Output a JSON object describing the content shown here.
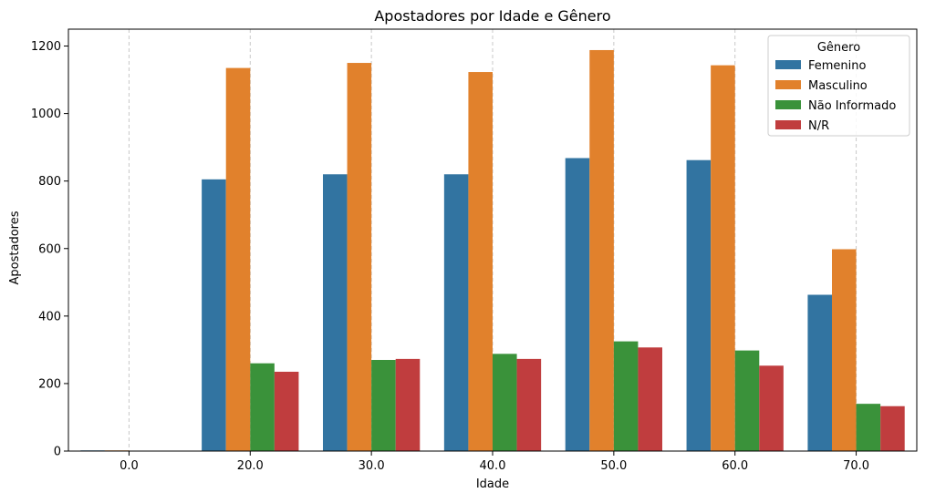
{
  "chart_data": {
    "type": "bar",
    "title": "Apostadores por Idade e Gênero",
    "xlabel": "Idade",
    "ylabel": "Apostadores",
    "categories": [
      "0.0",
      "20.0",
      "30.0",
      "40.0",
      "50.0",
      "60.0",
      "70.0"
    ],
    "ylim": [
      0,
      1250
    ],
    "yticks": [
      0,
      200,
      400,
      600,
      800,
      1000,
      1200
    ],
    "grid": "x-dashed",
    "legend": {
      "title": "Gênero",
      "position": "top-right"
    },
    "series": [
      {
        "name": "Femenino",
        "color": "#3274a1",
        "values": [
          2,
          805,
          820,
          820,
          868,
          862,
          463
        ]
      },
      {
        "name": "Masculino",
        "color": "#e1812c",
        "values": [
          2,
          1135,
          1150,
          1123,
          1188,
          1143,
          598
        ]
      },
      {
        "name": "Não Informado",
        "color": "#3a923a",
        "values": [
          1,
          260,
          270,
          288,
          325,
          298,
          140
        ]
      },
      {
        "name": "N/R",
        "color": "#c03d3e",
        "values": [
          1,
          235,
          273,
          273,
          307,
          253,
          133
        ]
      }
    ]
  }
}
